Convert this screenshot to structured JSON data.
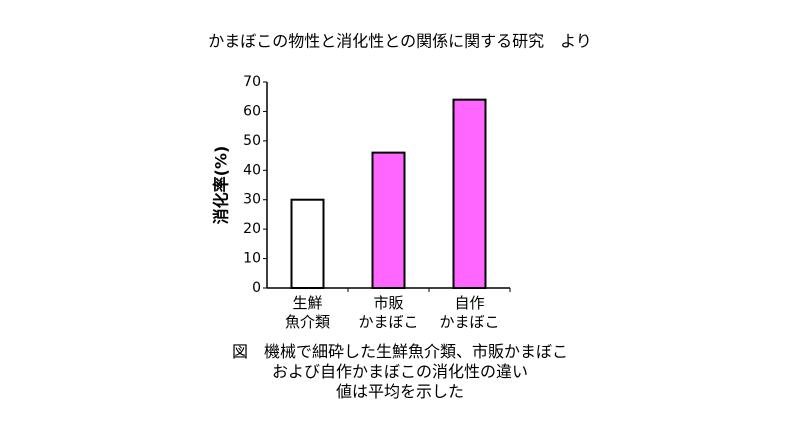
{
  "chart_data": {
    "type": "bar",
    "title": "かまぼこの物性と消化性との関係に関する研究　より",
    "y_label": "消化率(%)",
    "categories": [
      "生鮮\n魚介類",
      "市販\nかまぼこ",
      "自作\nかまぼこ"
    ],
    "values": [
      30,
      46,
      64
    ],
    "colors": [
      "#ffffff",
      "#ff66ff",
      "#ff66ff"
    ],
    "ylim": [
      0,
      70
    ],
    "yticks": [
      0,
      10,
      20,
      30,
      40,
      50,
      60,
      70
    ],
    "grid": false,
    "caption": [
      "図　機械で細砕した生鮮魚介類、市販かまぼこ",
      "および自作かまぼこの消化性の違い",
      "値は平均を示した"
    ]
  }
}
